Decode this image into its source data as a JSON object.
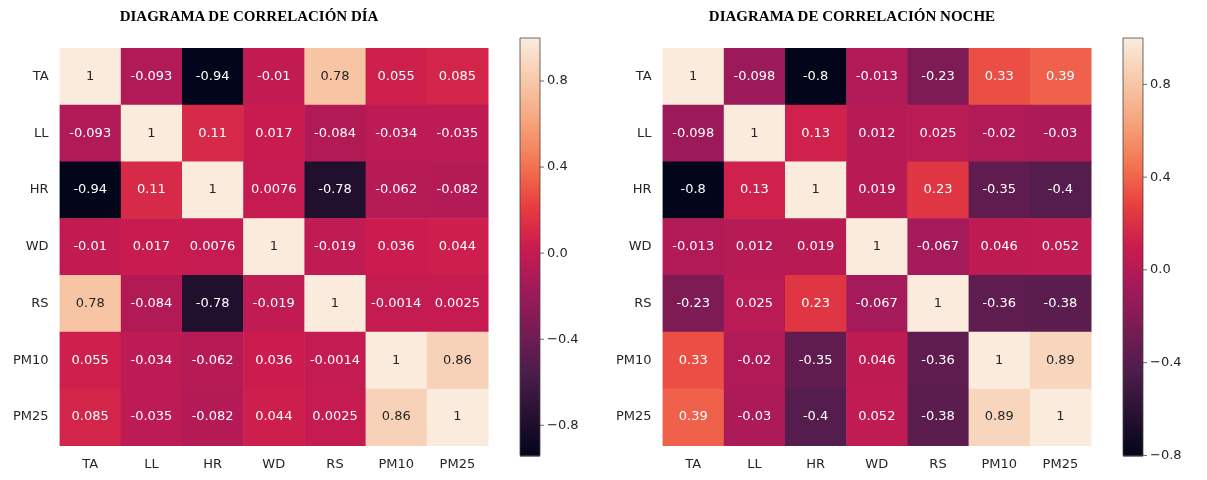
{
  "chart_data": [
    {
      "type": "heatmap",
      "title": "DIAGRAMA DE CORRELACIÓN DÍA",
      "categories": [
        "TA",
        "LL",
        "HR",
        "WD",
        "RS",
        "PM10",
        "PM25"
      ],
      "y_categories": [
        "TA",
        "LL",
        "HR",
        "WD",
        "RS",
        "PM10",
        "PM25"
      ],
      "cells": [
        [
          1,
          -0.093,
          -0.94,
          -0.01,
          0.78,
          0.055,
          0.085
        ],
        [
          -0.093,
          1,
          0.11,
          0.017,
          -0.084,
          -0.034,
          -0.035
        ],
        [
          -0.94,
          0.11,
          1,
          0.0076,
          -0.78,
          -0.062,
          -0.082
        ],
        [
          -0.01,
          0.017,
          0.0076,
          1,
          -0.019,
          0.036,
          0.044
        ],
        [
          0.78,
          -0.084,
          -0.78,
          -0.019,
          1,
          -0.0014,
          0.0025
        ],
        [
          0.055,
          -0.034,
          -0.062,
          0.036,
          -0.0014,
          1,
          0.86
        ],
        [
          0.085,
          -0.035,
          -0.082,
          0.044,
          0.0025,
          0.86,
          1
        ]
      ],
      "clim": [
        -0.94,
        1
      ],
      "cticks": [
        -0.8,
        -0.4,
        {
          "value": 0,
          "label": "0.0"
        },
        0.4,
        0.8
      ],
      "data_labels": true
    },
    {
      "type": "heatmap",
      "title": "DIAGRAMA DE CORRELACIÓN NOCHE",
      "categories": [
        "TA",
        "LL",
        "HR",
        "WD",
        "RS",
        "PM10",
        "PM25"
      ],
      "y_categories": [
        "TA",
        "LL",
        "HR",
        "WD",
        "RS",
        "PM10",
        "PM25"
      ],
      "cells": [
        [
          1,
          -0.098,
          -0.8,
          -0.013,
          -0.23,
          0.33,
          0.39
        ],
        [
          -0.098,
          1,
          0.13,
          0.012,
          0.025,
          -0.02,
          -0.03
        ],
        [
          -0.8,
          0.13,
          1,
          0.019,
          0.23,
          -0.35,
          -0.4
        ],
        [
          -0.013,
          0.012,
          0.019,
          1,
          -0.067,
          0.046,
          0.052
        ],
        [
          -0.23,
          0.025,
          0.23,
          -0.067,
          1,
          -0.36,
          -0.38
        ],
        [
          0.33,
          -0.02,
          -0.35,
          0.046,
          -0.36,
          1,
          0.89
        ],
        [
          0.39,
          -0.03,
          -0.4,
          0.052,
          -0.38,
          0.89,
          1
        ]
      ],
      "clim": [
        -0.8,
        1
      ],
      "cticks": [
        -0.8,
        -0.4,
        {
          "value": 0,
          "label": "0.0"
        },
        0.4,
        0.8
      ],
      "data_labels": true
    }
  ]
}
